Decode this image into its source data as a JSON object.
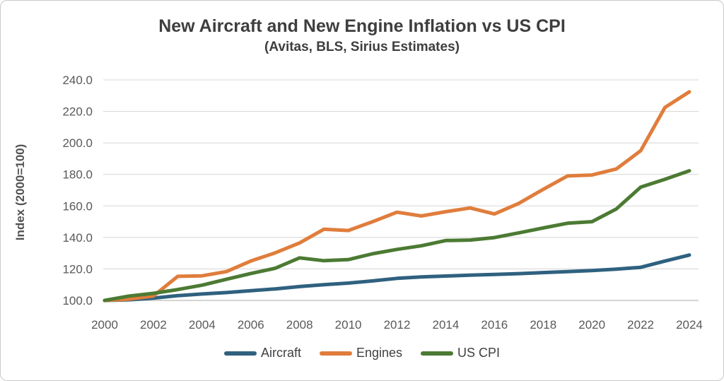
{
  "header": {
    "title": "New Aircraft and New Engine Inflation vs US CPI",
    "subtitle": "(Avitas, BLS, Sirius Estimates)"
  },
  "chart_data": {
    "type": "line",
    "title": "New Aircraft and New Engine Inflation vs US CPI",
    "subtitle": "(Avitas, BLS, Sirius Estimates)",
    "xlabel": "",
    "ylabel": "Index (2000=100)",
    "x": [
      2000,
      2001,
      2002,
      2003,
      2004,
      2005,
      2006,
      2007,
      2008,
      2009,
      2010,
      2011,
      2012,
      2013,
      2014,
      2015,
      2016,
      2017,
      2018,
      2019,
      2020,
      2021,
      2022,
      2023,
      2024
    ],
    "series": [
      {
        "name": "Aircraft",
        "color": "#2f617f",
        "values": [
          100.0,
          100.4,
          101.5,
          103.0,
          104.1,
          105.0,
          106.2,
          107.3,
          108.8,
          110.0,
          111.0,
          112.4,
          114.0,
          114.9,
          115.5,
          116.0,
          116.5,
          117.0,
          117.7,
          118.3,
          119.0,
          119.9,
          121.0,
          125.0,
          128.8
        ]
      },
      {
        "name": "Engines",
        "color": "#e07d3c",
        "values": [
          100.0,
          100.8,
          102.8,
          115.3,
          115.6,
          118.3,
          125.0,
          130.2,
          136.5,
          145.2,
          144.4,
          150.0,
          156.0,
          153.6,
          156.3,
          158.7,
          154.9,
          161.6,
          170.5,
          179.0,
          179.6,
          183.4,
          195.0,
          222.5,
          232.4
        ]
      },
      {
        "name": "US CPI",
        "color": "#4c7a33",
        "values": [
          100.0,
          102.8,
          104.5,
          106.9,
          109.7,
          113.4,
          117.1,
          120.4,
          127.0,
          125.2,
          125.9,
          129.6,
          132.4,
          134.7,
          138.0,
          138.3,
          139.9,
          142.9,
          146.0,
          149.0,
          150.0,
          158.0,
          171.9,
          176.9,
          182.3
        ]
      }
    ],
    "ylim": [
      100,
      240
    ],
    "yticks": [
      "240.0",
      "220.0",
      "200.0",
      "180.0",
      "160.0",
      "140.0",
      "120.0",
      "100.0"
    ],
    "ytick_values": [
      240,
      220,
      200,
      180,
      160,
      140,
      120,
      100
    ],
    "xticks": [
      "2000",
      "2002",
      "2004",
      "2006",
      "2008",
      "2010",
      "2012",
      "2014",
      "2016",
      "2018",
      "2020",
      "2022",
      "2024"
    ],
    "xtick_values": [
      2000,
      2002,
      2004,
      2006,
      2008,
      2010,
      2012,
      2014,
      2016,
      2018,
      2020,
      2022,
      2024
    ],
    "grid": "horizontal",
    "grid_color": "#d9d9d9",
    "axis_color": "#c6c6c6",
    "legend_position": "bottom"
  }
}
